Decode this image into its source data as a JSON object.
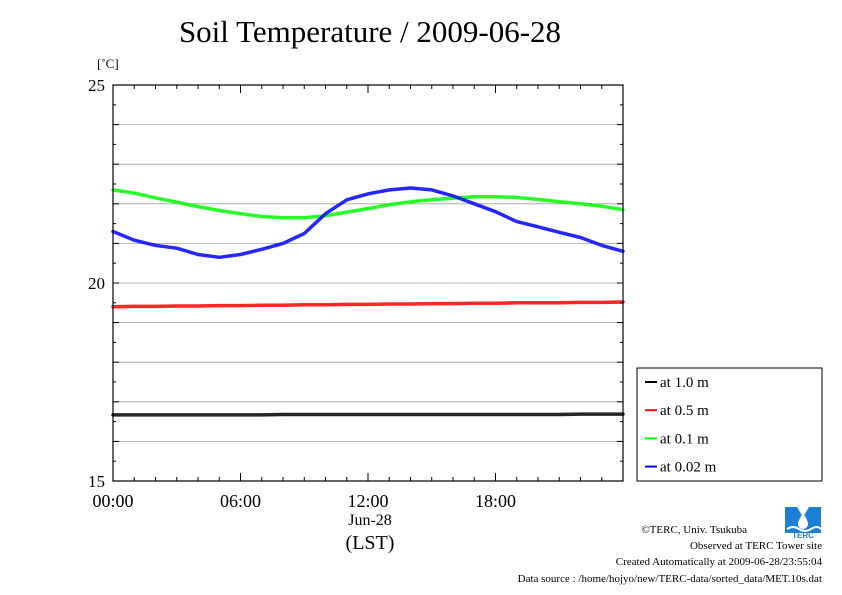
{
  "title": "Soil Temperature / 2009-06-28",
  "unit": "[˚C]",
  "x_date": "Jun-28",
  "x_zone": "(LST)",
  "footer": {
    "copyright": "©TERC, Univ. Tsukuba",
    "observed": "Observed at TERC Tower site",
    "created": "Created Automatically at 2009-06-28/23:55:04",
    "source": "Data source : /home/hojyo/new/TERC-data/sorted_data/MET.10s.dat"
  },
  "logo_text": "TERC",
  "chart_data": {
    "type": "line",
    "title": "Soil Temperature / 2009-06-28",
    "ylabel": "[˚C]",
    "xlabel": "(LST)",
    "xlim": [
      0,
      24
    ],
    "ylim": [
      15,
      25
    ],
    "x_ticks": [
      0,
      6,
      12,
      18
    ],
    "x_tick_labels": [
      "00:00",
      "06:00",
      "12:00",
      "18:00"
    ],
    "y_ticks": [
      15,
      20,
      25
    ],
    "y_tick_labels": [
      "15",
      "20",
      "25"
    ],
    "grid": true,
    "legend_position": "right",
    "x": [
      0,
      1,
      2,
      3,
      4,
      5,
      6,
      7,
      8,
      9,
      10,
      11,
      12,
      13,
      14,
      15,
      16,
      17,
      18,
      19,
      20,
      21,
      22,
      23,
      24
    ],
    "series": [
      {
        "name": "at 1.0 m",
        "color": "#000000",
        "values": [
          16.67,
          16.67,
          16.67,
          16.67,
          16.67,
          16.67,
          16.67,
          16.67,
          16.68,
          16.68,
          16.68,
          16.68,
          16.68,
          16.68,
          16.68,
          16.68,
          16.68,
          16.68,
          16.68,
          16.68,
          16.68,
          16.68,
          16.69,
          16.69,
          16.69
        ]
      },
      {
        "name": "at 0.5 m",
        "color": "#ff0000",
        "values": [
          19.4,
          19.41,
          19.41,
          19.42,
          19.42,
          19.43,
          19.43,
          19.44,
          19.44,
          19.45,
          19.45,
          19.46,
          19.46,
          19.47,
          19.47,
          19.48,
          19.48,
          19.49,
          19.49,
          19.5,
          19.5,
          19.5,
          19.51,
          19.51,
          19.52
        ]
      },
      {
        "name": "at 0.1 m",
        "color": "#00ff00",
        "values": [
          22.35,
          22.27,
          22.15,
          22.04,
          21.93,
          21.83,
          21.75,
          21.68,
          21.65,
          21.65,
          21.7,
          21.79,
          21.88,
          21.98,
          22.05,
          22.1,
          22.14,
          22.18,
          22.18,
          22.16,
          22.11,
          22.05,
          22.0,
          21.94,
          21.85
        ]
      },
      {
        "name": "at 0.02 m",
        "color": "#0000ff",
        "values": [
          21.3,
          21.08,
          20.95,
          20.88,
          20.72,
          20.65,
          20.72,
          20.85,
          21.0,
          21.25,
          21.75,
          22.1,
          22.25,
          22.35,
          22.4,
          22.35,
          22.2,
          22.0,
          21.8,
          21.55,
          21.42,
          21.28,
          21.15,
          20.95,
          20.8
        ]
      }
    ]
  }
}
